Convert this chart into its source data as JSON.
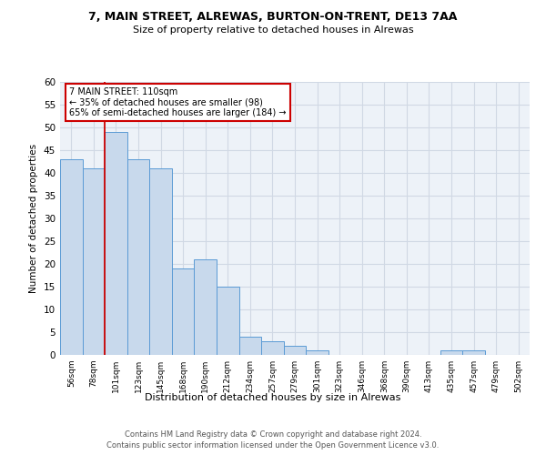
{
  "title1": "7, MAIN STREET, ALREWAS, BURTON-ON-TRENT, DE13 7AA",
  "title2": "Size of property relative to detached houses in Alrewas",
  "xlabel": "Distribution of detached houses by size in Alrewas",
  "ylabel": "Number of detached properties",
  "categories": [
    "56sqm",
    "78sqm",
    "101sqm",
    "123sqm",
    "145sqm",
    "168sqm",
    "190sqm",
    "212sqm",
    "234sqm",
    "257sqm",
    "279sqm",
    "301sqm",
    "323sqm",
    "346sqm",
    "368sqm",
    "390sqm",
    "413sqm",
    "435sqm",
    "457sqm",
    "479sqm",
    "502sqm"
  ],
  "values": [
    43,
    41,
    49,
    43,
    41,
    19,
    21,
    15,
    4,
    3,
    2,
    1,
    0,
    0,
    0,
    0,
    0,
    1,
    1,
    0,
    0
  ],
  "bar_color": "#c8d9ec",
  "bar_edge_color": "#5b9bd5",
  "annotation_line1": "7 MAIN STREET: 110sqm",
  "annotation_line2": "← 35% of detached houses are smaller (98)",
  "annotation_line3": "65% of semi-detached houses are larger (184) →",
  "vline_color": "#cc0000",
  "annotation_box_edge": "#cc0000",
  "ylim_max": 60,
  "yticks": [
    0,
    5,
    10,
    15,
    20,
    25,
    30,
    35,
    40,
    45,
    50,
    55,
    60
  ],
  "footer1": "Contains HM Land Registry data © Crown copyright and database right 2024.",
  "footer2": "Contains public sector information licensed under the Open Government Licence v3.0.",
  "grid_color": "#d0d8e4",
  "bg_color": "#edf2f8"
}
